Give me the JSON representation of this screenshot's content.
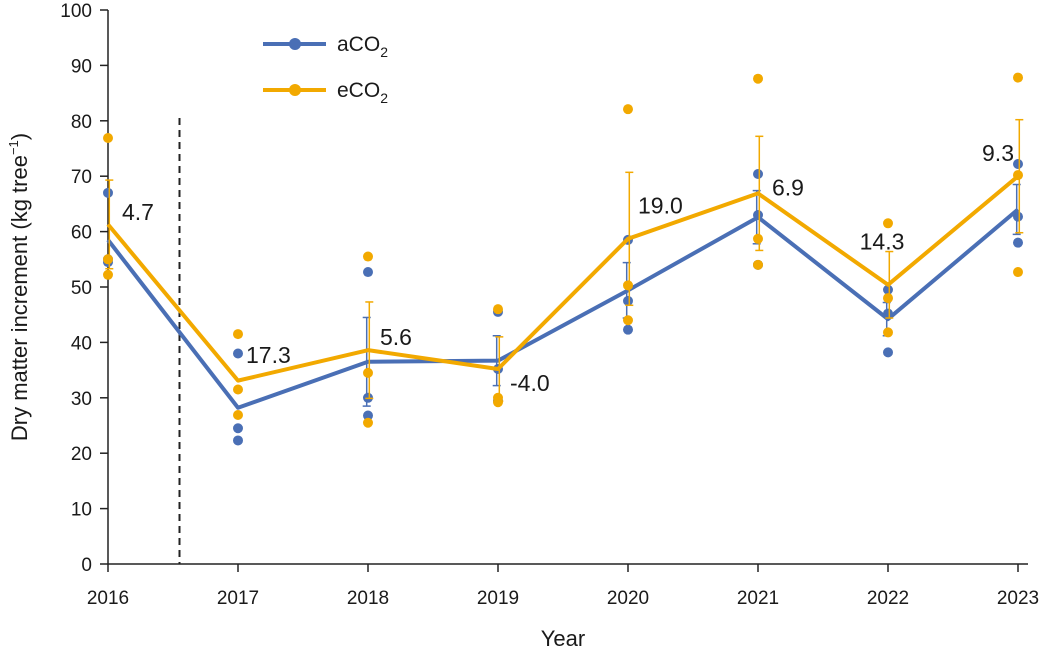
{
  "chart_data": {
    "type": "line",
    "title": "",
    "xlabel": "Year",
    "ylabel": {
      "main": "Dry matter increment (kg tree",
      "sup": "−1",
      "close": ")"
    },
    "ylim": [
      0,
      100
    ],
    "yticks": [
      0,
      10,
      20,
      30,
      40,
      50,
      60,
      70,
      80,
      90,
      100
    ],
    "categories": [
      "2016",
      "2017",
      "2018",
      "2019",
      "2020",
      "2021",
      "2022",
      "2023"
    ],
    "treatment_start_after": "2016",
    "legend_position": "top-left",
    "series": [
      {
        "name": "aCO2",
        "label_main": "aCO",
        "label_sub": "2",
        "color": "#4a6fb5",
        "means": [
          58.5,
          28.2,
          36.5,
          36.7,
          49.4,
          62.6,
          44.2,
          64.0
        ],
        "error": [
          null,
          null,
          8.0,
          4.5,
          5.0,
          4.8,
          3.0,
          4.5
        ],
        "points": [
          [
            67,
            55,
            54.5
          ],
          [
            38,
            24.5,
            22.3
          ],
          [
            52.7,
            30,
            26.8
          ],
          [
            45.5,
            35.2,
            29.5
          ],
          [
            58.5,
            47.5,
            42.3
          ],
          [
            70.4,
            63,
            54
          ],
          [
            49.5,
            45.2,
            38.2
          ],
          [
            72.2,
            62.7,
            58
          ]
        ]
      },
      {
        "name": "eCO2",
        "label_main": "eCO",
        "label_sub": "2",
        "color": "#f2a900",
        "means": [
          61.3,
          33.1,
          38.6,
          35.2,
          58.7,
          66.9,
          50.4,
          70.0
        ],
        "error": [
          8.0,
          null,
          8.7,
          5.8,
          12.0,
          10.3,
          6.0,
          10.2
        ],
        "points": [
          [
            76.9,
            55,
            52.2
          ],
          [
            41.5,
            31.5,
            26.9
          ],
          [
            55.5,
            34.5,
            25.5
          ],
          [
            46,
            30,
            29.2
          ],
          [
            82.1,
            50.3,
            44
          ],
          [
            87.6,
            58.7,
            54
          ],
          [
            61.5,
            48,
            41.8
          ],
          [
            87.8,
            70.2,
            52.7
          ]
        ]
      }
    ],
    "annotations": [
      "4.7",
      "17.3",
      "5.6",
      "-4.0",
      "19.0",
      "6.9",
      "14.3",
      "9.3"
    ]
  }
}
